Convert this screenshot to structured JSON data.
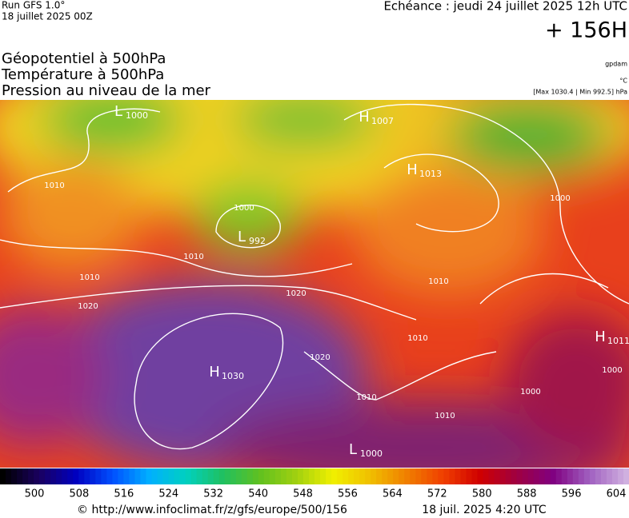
{
  "header": {
    "run": "Run GFS 1.0°",
    "date": "18 juillet 2025 00Z",
    "valid": "Echéance : jeudi 24 juillet 2025 12h UTC",
    "lead": "+ 156H"
  },
  "titles": [
    "Géopotentiel à 500hPa",
    "Température à 500hPa",
    "Pression au niveau de la mer"
  ],
  "units": [
    "gpdam",
    "°C",
    "[Max 1030.4 | Min 992.5] hPa"
  ],
  "map": {
    "centers": [
      {
        "letter": "L",
        "value": "1000"
      },
      {
        "letter": "H",
        "value": "1007"
      },
      {
        "letter": "H",
        "value": "1013"
      },
      {
        "letter": "L",
        "value": "992"
      },
      {
        "letter": "H",
        "value": "1030"
      },
      {
        "letter": "L",
        "value": "1000"
      },
      {
        "letter": "H",
        "value": "1011"
      }
    ],
    "isobar_labels": [
      "1010",
      "1010",
      "1010",
      "1020",
      "1020",
      "1020",
      "1010",
      "1010",
      "1010",
      "1000",
      "1000",
      "1000",
      "1000",
      "1010"
    ]
  },
  "colorbar": {
    "labels": [
      "500",
      "508",
      "516",
      "524",
      "532",
      "540",
      "548",
      "556",
      "564",
      "572",
      "580",
      "588",
      "596",
      "604"
    ]
  },
  "footer": {
    "url": "© http://www.infoclimat.fr/z/gfs/europe/500/156",
    "time": "18 juil. 2025  4:20 UTC"
  }
}
